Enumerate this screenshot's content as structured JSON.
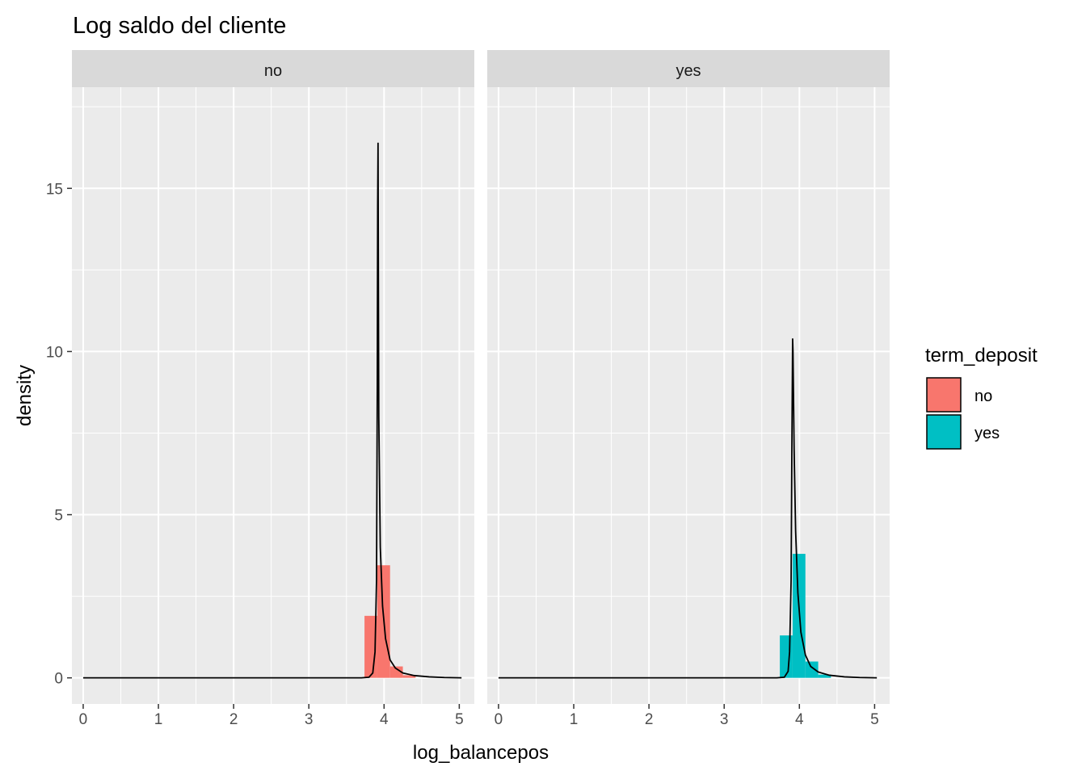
{
  "chart_data": {
    "type": "histogram-density-facets",
    "title": "Log saldo del cliente",
    "xlabel": "log_balancepos",
    "ylabel": "density",
    "xlim": [
      -0.15,
      5.2
    ],
    "ylim": [
      -0.8,
      18.1
    ],
    "x_ticks": [
      0,
      1,
      2,
      3,
      4,
      5
    ],
    "y_ticks": [
      0,
      5,
      10,
      15
    ],
    "grid": true,
    "legend": {
      "title": "term_deposit",
      "position": "right",
      "entries": [
        {
          "label": "no",
          "color": "#F8766D"
        },
        {
          "label": "yes",
          "color": "#00BFC4"
        }
      ]
    },
    "panels": [
      {
        "strip": "no",
        "fill": "#F8766D",
        "bins": [
          {
            "x0": 3.74,
            "x1": 3.91,
            "density": 1.9
          },
          {
            "x0": 3.91,
            "x1": 4.08,
            "density": 3.45
          },
          {
            "x0": 4.08,
            "x1": 4.25,
            "density": 0.35
          },
          {
            "x0": 4.25,
            "x1": 4.42,
            "density": 0.08
          }
        ],
        "density_curve": [
          [
            0,
            0
          ],
          [
            3.7,
            0
          ],
          [
            3.8,
            0.02
          ],
          [
            3.85,
            0.15
          ],
          [
            3.88,
            0.8
          ],
          [
            3.9,
            3.0
          ],
          [
            3.91,
            9.0
          ],
          [
            3.915,
            14.5
          ],
          [
            3.92,
            16.4
          ],
          [
            3.925,
            12.0
          ],
          [
            3.93,
            8.0
          ],
          [
            3.95,
            4.0
          ],
          [
            3.98,
            2.2
          ],
          [
            4.02,
            1.2
          ],
          [
            4.08,
            0.55
          ],
          [
            4.15,
            0.3
          ],
          [
            4.25,
            0.15
          ],
          [
            4.4,
            0.07
          ],
          [
            4.6,
            0.03
          ],
          [
            4.8,
            0.01
          ],
          [
            5.03,
            0
          ]
        ]
      },
      {
        "strip": "yes",
        "fill": "#00BFC4",
        "bins": [
          {
            "x0": 3.74,
            "x1": 3.91,
            "density": 1.3
          },
          {
            "x0": 3.91,
            "x1": 4.08,
            "density": 3.8
          },
          {
            "x0": 4.08,
            "x1": 4.25,
            "density": 0.5
          },
          {
            "x0": 4.25,
            "x1": 4.42,
            "density": 0.1
          }
        ],
        "density_curve": [
          [
            0,
            0
          ],
          [
            3.7,
            0
          ],
          [
            3.8,
            0.02
          ],
          [
            3.85,
            0.2
          ],
          [
            3.87,
            0.8
          ],
          [
            3.89,
            3.0
          ],
          [
            3.9,
            7.0
          ],
          [
            3.91,
            10.4
          ],
          [
            3.915,
            10.0
          ],
          [
            3.93,
            7.0
          ],
          [
            3.95,
            4.5
          ],
          [
            3.98,
            2.6
          ],
          [
            4.02,
            1.4
          ],
          [
            4.08,
            0.7
          ],
          [
            4.15,
            0.35
          ],
          [
            4.25,
            0.18
          ],
          [
            4.4,
            0.08
          ],
          [
            4.6,
            0.03
          ],
          [
            4.8,
            0.01
          ],
          [
            5.03,
            0
          ]
        ]
      }
    ]
  }
}
